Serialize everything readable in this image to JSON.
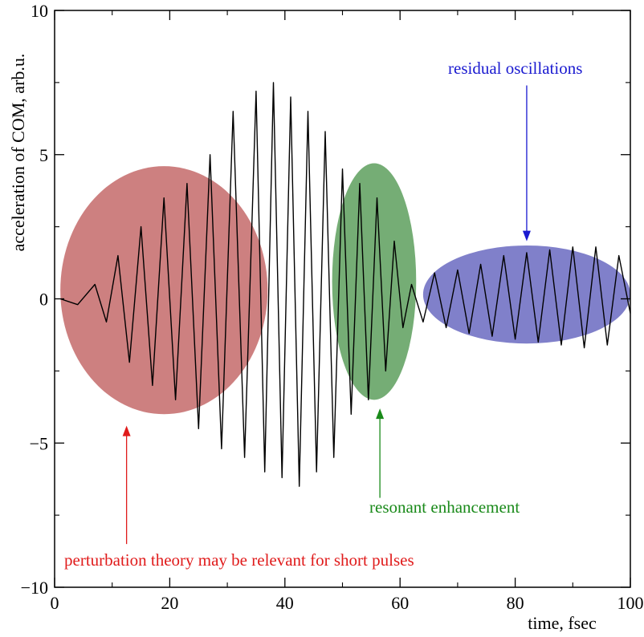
{
  "chart_data": {
    "type": "line",
    "title": "",
    "xlabel": "time, fsec",
    "ylabel": "acceleration of COM, arb.u.",
    "xlim": [
      0,
      100
    ],
    "ylim": [
      -10,
      10
    ],
    "xticks": [
      0,
      20,
      40,
      60,
      80,
      100
    ],
    "yticks": [
      -10,
      -5,
      0,
      5,
      10
    ],
    "xtick_labels": [
      "0",
      "20",
      "40",
      "60",
      "80",
      "100"
    ],
    "ytick_labels": [
      "−10",
      "−5",
      "0",
      "5",
      "10"
    ],
    "grid": false,
    "legend": "none",
    "series": [
      {
        "color": "#000000",
        "x": [
          1,
          4,
          7,
          9,
          11,
          13,
          15,
          17,
          19,
          21,
          23,
          25,
          27,
          29,
          31,
          33,
          35,
          36.5,
          38,
          39.5,
          41,
          42.5,
          44,
          45.5,
          47,
          48.5,
          50,
          51.5,
          53,
          54.5,
          56,
          57.5,
          59,
          60.5,
          62,
          64,
          66,
          68,
          70,
          72,
          74,
          76,
          78,
          80,
          82,
          84,
          86,
          88,
          90,
          92,
          94,
          96,
          98,
          100
        ],
        "y": [
          0,
          -0.2,
          0.5,
          -0.8,
          1.5,
          -2.2,
          2.5,
          -3.0,
          3.5,
          -3.5,
          4.0,
          -4.5,
          5.0,
          -5.2,
          6.5,
          -5.5,
          7.2,
          -6.0,
          7.5,
          -6.2,
          7.0,
          -6.5,
          6.5,
          -6.0,
          5.8,
          -5.5,
          4.5,
          -4.0,
          4.0,
          -3.5,
          3.5,
          -2.5,
          2.0,
          -1.0,
          0.5,
          -0.8,
          0.9,
          -1.0,
          1.0,
          -1.2,
          1.2,
          -1.3,
          1.5,
          -1.4,
          1.6,
          -1.5,
          1.7,
          -1.6,
          1.8,
          -1.7,
          1.8,
          -1.6,
          1.5,
          -0.5
        ]
      }
    ],
    "regions": [
      {
        "label": "perturbation theory may be relevant for short pulses",
        "color": "#b84a4a",
        "text_color": "#e01b1b",
        "cx": 19,
        "cy": 0.3,
        "rx": 18,
        "ry": 4.3,
        "arrow_x": 12.5,
        "arrow_tail_y": -8.5,
        "arrow_head_y": -4.4
      },
      {
        "label": "resonant enhancement",
        "color": "#3a8a3a",
        "text_color": "#1a8a1a",
        "cx": 55.5,
        "cy": 0.6,
        "rx": 7.3,
        "ry": 4.1,
        "arrow_x": 56.5,
        "arrow_tail_y": -6.9,
        "arrow_head_y": -3.8
      },
      {
        "label": "residual oscillations",
        "color": "#4a4ab4",
        "text_color": "#1a1ad0",
        "cx": 82,
        "cy": 0.15,
        "rx": 18,
        "ry": 1.7,
        "arrow_x": 82,
        "arrow_tail_y": 7.4,
        "arrow_head_y": 2.0
      }
    ]
  }
}
